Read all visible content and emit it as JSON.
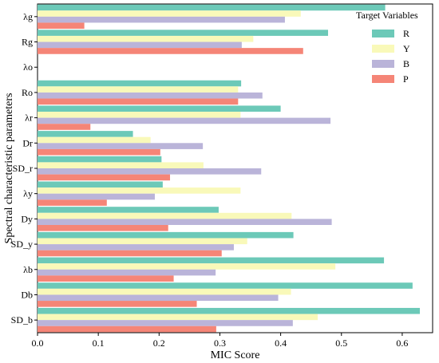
{
  "chart_data": {
    "type": "bar",
    "orientation": "horizontal",
    "categories": [
      "λg",
      "Rg",
      "λo",
      "Ro",
      "λr",
      "Dr",
      "SD_r",
      "λy",
      "Dy",
      "SD_y",
      "λb",
      "Db",
      "SD_b"
    ],
    "series": [
      {
        "name": "R",
        "color": "#6cc9b8",
        "values": [
          0.572,
          0.478,
          0.0,
          0.335,
          0.4,
          0.157,
          0.204,
          0.206,
          0.298,
          0.421,
          0.57,
          0.617,
          0.629
        ]
      },
      {
        "name": "Y",
        "color": "#f9f9b9",
        "values": [
          0.433,
          0.355,
          0.0,
          0.33,
          0.334,
          0.186,
          0.273,
          0.334,
          0.418,
          0.345,
          0.49,
          0.417,
          0.461
        ]
      },
      {
        "name": "B",
        "color": "#bab4d9",
        "values": [
          0.407,
          0.336,
          0.0,
          0.37,
          0.482,
          0.272,
          0.368,
          0.193,
          0.484,
          0.323,
          0.293,
          0.396,
          0.42
        ]
      },
      {
        "name": "P",
        "color": "#f58577",
        "values": [
          0.077,
          0.437,
          0.0,
          0.33,
          0.087,
          0.202,
          0.218,
          0.114,
          0.215,
          0.303,
          0.224,
          0.262,
          0.294
        ]
      }
    ],
    "xlabel": "MIC Score",
    "ylabel": "Spectral characteristic parameters",
    "xlim": [
      0.0,
      0.65
    ],
    "xticks": [
      "0.0",
      "0.1",
      "0.2",
      "0.3",
      "0.4",
      "0.5",
      "0.6"
    ],
    "legend": {
      "title": "Target Variables",
      "position": "top-right"
    },
    "grid": false
  }
}
